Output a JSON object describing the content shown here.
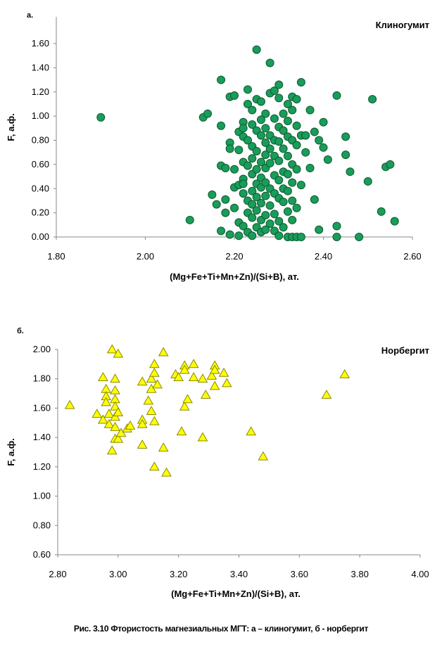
{
  "chart_data": [
    {
      "type": "scatter",
      "panel_letter": "а.",
      "title": "Клиногумит",
      "xlabel": "(Mg+Fe+Ti+Mn+Zn)/(Si+B), ат.",
      "ylabel": "F, а.ф.",
      "xlim": [
        1.8,
        2.6
      ],
      "ylim": [
        0.0,
        1.6
      ],
      "x_ticks": [
        "1.80",
        "2.00",
        "2.20",
        "2.40",
        "2.60"
      ],
      "y_ticks": [
        "0.00",
        "0.20",
        "0.40",
        "0.60",
        "0.80",
        "1.00",
        "1.20",
        "1.40",
        "1.60"
      ],
      "marker": "circle",
      "marker_color": "#1a9c5a",
      "marker_edge": "#0b5a2e",
      "grid": false,
      "points": [
        [
          1.9,
          0.99
        ],
        [
          2.1,
          0.14
        ],
        [
          2.13,
          0.99
        ],
        [
          2.14,
          1.02
        ],
        [
          2.15,
          0.35
        ],
        [
          2.16,
          0.27
        ],
        [
          2.17,
          0.05
        ],
        [
          2.17,
          1.3
        ],
        [
          2.17,
          0.92
        ],
        [
          2.17,
          0.59
        ],
        [
          2.18,
          0.2
        ],
        [
          2.18,
          0.31
        ],
        [
          2.18,
          0.57
        ],
        [
          2.19,
          1.16
        ],
        [
          2.19,
          0.78
        ],
        [
          2.19,
          0.73
        ],
        [
          2.19,
          0.02
        ],
        [
          2.2,
          1.17
        ],
        [
          2.2,
          0.56
        ],
        [
          2.2,
          0.24
        ],
        [
          2.2,
          0.41
        ],
        [
          2.21,
          0.87
        ],
        [
          2.21,
          0.72
        ],
        [
          2.21,
          0.12
        ],
        [
          2.21,
          0.43
        ],
        [
          2.21,
          0.01
        ],
        [
          2.22,
          0.95
        ],
        [
          2.22,
          0.9
        ],
        [
          2.22,
          0.83
        ],
        [
          2.22,
          0.62
        ],
        [
          2.22,
          0.48
        ],
        [
          2.22,
          0.44
        ],
        [
          2.22,
          0.36
        ],
        [
          2.22,
          0.09
        ],
        [
          2.23,
          1.22
        ],
        [
          2.23,
          1.1
        ],
        [
          2.23,
          0.8
        ],
        [
          2.23,
          0.59
        ],
        [
          2.23,
          0.3
        ],
        [
          2.23,
          0.2
        ],
        [
          2.23,
          0.04
        ],
        [
          2.24,
          1.05
        ],
        [
          2.24,
          0.93
        ],
        [
          2.24,
          0.75
        ],
        [
          2.24,
          0.65
        ],
        [
          2.24,
          0.52
        ],
        [
          2.24,
          0.38
        ],
        [
          2.24,
          0.27
        ],
        [
          2.24,
          0.16
        ],
        [
          2.24,
          0.01
        ],
        [
          2.25,
          1.55
        ],
        [
          2.25,
          1.14
        ],
        [
          2.25,
          0.88
        ],
        [
          2.25,
          0.71
        ],
        [
          2.25,
          0.56
        ],
        [
          2.25,
          0.44
        ],
        [
          2.25,
          0.33
        ],
        [
          2.25,
          0.22
        ],
        [
          2.25,
          0.08
        ],
        [
          2.26,
          1.12
        ],
        [
          2.26,
          0.97
        ],
        [
          2.26,
          0.84
        ],
        [
          2.26,
          0.62
        ],
        [
          2.26,
          0.49
        ],
        [
          2.26,
          0.41
        ],
        [
          2.26,
          0.28
        ],
        [
          2.26,
          0.14
        ],
        [
          2.26,
          0.04
        ],
        [
          2.27,
          1.02
        ],
        [
          2.27,
          0.9
        ],
        [
          2.27,
          0.78
        ],
        [
          2.27,
          0.68
        ],
        [
          2.27,
          0.57
        ],
        [
          2.27,
          0.45
        ],
        [
          2.27,
          0.34
        ],
        [
          2.27,
          0.18
        ],
        [
          2.27,
          0.06
        ],
        [
          2.28,
          1.44
        ],
        [
          2.28,
          1.19
        ],
        [
          2.28,
          0.84
        ],
        [
          2.28,
          0.73
        ],
        [
          2.28,
          0.61
        ],
        [
          2.28,
          0.4
        ],
        [
          2.28,
          0.26
        ],
        [
          2.28,
          0.11
        ],
        [
          2.29,
          1.21
        ],
        [
          2.29,
          0.98
        ],
        [
          2.29,
          0.8
        ],
        [
          2.29,
          0.67
        ],
        [
          2.29,
          0.51
        ],
        [
          2.29,
          0.36
        ],
        [
          2.29,
          0.19
        ],
        [
          2.29,
          0.05
        ],
        [
          2.3,
          1.26
        ],
        [
          2.3,
          1.15
        ],
        [
          2.3,
          0.91
        ],
        [
          2.3,
          0.79
        ],
        [
          2.3,
          0.63
        ],
        [
          2.3,
          0.47
        ],
        [
          2.3,
          0.32
        ],
        [
          2.3,
          0.13
        ],
        [
          2.3,
          0.01
        ],
        [
          2.31,
          1.02
        ],
        [
          2.31,
          0.88
        ],
        [
          2.31,
          0.73
        ],
        [
          2.31,
          0.54
        ],
        [
          2.31,
          0.4
        ],
        [
          2.31,
          0.29
        ],
        [
          2.31,
          0.08
        ],
        [
          2.32,
          1.1
        ],
        [
          2.32,
          0.96
        ],
        [
          2.32,
          0.83
        ],
        [
          2.32,
          0.67
        ],
        [
          2.32,
          0.52
        ],
        [
          2.32,
          0.38
        ],
        [
          2.32,
          0.21
        ],
        [
          2.32,
          0.0
        ],
        [
          2.33,
          1.16
        ],
        [
          2.33,
          1.05
        ],
        [
          2.33,
          0.8
        ],
        [
          2.33,
          0.6
        ],
        [
          2.33,
          0.45
        ],
        [
          2.33,
          0.3
        ],
        [
          2.33,
          0.14
        ],
        [
          2.33,
          0.0
        ],
        [
          2.34,
          1.14
        ],
        [
          2.34,
          0.92
        ],
        [
          2.34,
          0.76
        ],
        [
          2.34,
          0.56
        ],
        [
          2.34,
          0.24
        ],
        [
          2.34,
          0.0
        ],
        [
          2.35,
          1.28
        ],
        [
          2.35,
          0.84
        ],
        [
          2.35,
          0.43
        ],
        [
          2.35,
          0.0
        ],
        [
          2.36,
          0.7
        ],
        [
          2.36,
          0.84
        ],
        [
          2.37,
          1.05
        ],
        [
          2.37,
          0.57
        ],
        [
          2.38,
          0.87
        ],
        [
          2.38,
          0.31
        ],
        [
          2.39,
          0.8
        ],
        [
          2.39,
          0.06
        ],
        [
          2.4,
          0.95
        ],
        [
          2.4,
          0.74
        ],
        [
          2.41,
          0.64
        ],
        [
          2.43,
          1.17
        ],
        [
          2.43,
          0.09
        ],
        [
          2.43,
          0.0
        ],
        [
          2.45,
          0.83
        ],
        [
          2.45,
          0.68
        ],
        [
          2.46,
          0.54
        ],
        [
          2.48,
          0.0
        ],
        [
          2.5,
          0.46
        ],
        [
          2.51,
          1.14
        ],
        [
          2.53,
          0.21
        ],
        [
          2.54,
          0.58
        ],
        [
          2.55,
          0.6
        ],
        [
          2.56,
          0.13
        ]
      ]
    },
    {
      "type": "scatter",
      "panel_letter": "б.",
      "title": "Норбергит",
      "xlabel": "(Mg+Fe+Ti+Mn+Zn)/(Si+B), ат.",
      "ylabel": "F, а.ф.",
      "xlim": [
        2.8,
        4.0
      ],
      "ylim": [
        0.6,
        2.0
      ],
      "x_ticks": [
        "2.80",
        "3.00",
        "3.20",
        "3.40",
        "3.60",
        "3.80",
        "4.00"
      ],
      "y_ticks": [
        "0.60",
        "0.80",
        "1.00",
        "1.20",
        "1.40",
        "1.60",
        "1.80",
        "2.00"
      ],
      "marker": "triangle",
      "marker_color": "#ffff00",
      "marker_edge": "#8a8a00",
      "grid": false,
      "points": [
        [
          2.84,
          1.62
        ],
        [
          2.93,
          1.56
        ],
        [
          2.95,
          1.52
        ],
        [
          2.95,
          1.81
        ],
        [
          2.96,
          1.73
        ],
        [
          2.96,
          1.68
        ],
        [
          2.96,
          1.64
        ],
        [
          2.97,
          1.56
        ],
        [
          2.97,
          1.49
        ],
        [
          2.98,
          2.0
        ],
        [
          2.98,
          1.31
        ],
        [
          2.99,
          1.8
        ],
        [
          2.99,
          1.72
        ],
        [
          2.99,
          1.66
        ],
        [
          2.99,
          1.61
        ],
        [
          2.99,
          1.54
        ],
        [
          2.99,
          1.47
        ],
        [
          2.99,
          1.39
        ],
        [
          3.0,
          1.97
        ],
        [
          3.0,
          1.57
        ],
        [
          3.0,
          1.39
        ],
        [
          3.01,
          1.43
        ],
        [
          3.03,
          1.46
        ],
        [
          3.04,
          1.48
        ],
        [
          3.08,
          1.78
        ],
        [
          3.08,
          1.52
        ],
        [
          3.08,
          1.49
        ],
        [
          3.08,
          1.35
        ],
        [
          3.1,
          1.65
        ],
        [
          3.11,
          1.8
        ],
        [
          3.11,
          1.73
        ],
        [
          3.11,
          1.58
        ],
        [
          3.12,
          1.9
        ],
        [
          3.12,
          1.84
        ],
        [
          3.12,
          1.51
        ],
        [
          3.12,
          1.2
        ],
        [
          3.13,
          1.76
        ],
        [
          3.15,
          1.98
        ],
        [
          3.15,
          1.33
        ],
        [
          3.16,
          1.16
        ],
        [
          3.19,
          1.83
        ],
        [
          3.2,
          1.81
        ],
        [
          3.21,
          1.44
        ],
        [
          3.22,
          1.89
        ],
        [
          3.22,
          1.86
        ],
        [
          3.22,
          1.61
        ],
        [
          3.23,
          1.66
        ],
        [
          3.25,
          1.9
        ],
        [
          3.25,
          1.81
        ],
        [
          3.28,
          1.8
        ],
        [
          3.28,
          1.4
        ],
        [
          3.29,
          1.69
        ],
        [
          3.31,
          1.82
        ],
        [
          3.32,
          1.89
        ],
        [
          3.32,
          1.86
        ],
        [
          3.32,
          1.75
        ],
        [
          3.35,
          1.84
        ],
        [
          3.36,
          1.77
        ],
        [
          3.44,
          1.44
        ],
        [
          3.48,
          1.27
        ],
        [
          3.69,
          1.69
        ],
        [
          3.75,
          1.83
        ]
      ]
    }
  ],
  "caption": "Рис. 3.10 Фтористость магнезиальных МГТ: а – клиногумит, б - норбергит"
}
